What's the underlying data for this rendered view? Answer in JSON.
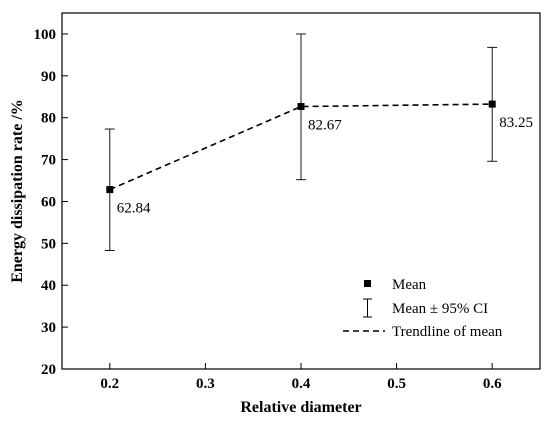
{
  "chart_data": {
    "type": "line",
    "title": "",
    "xlabel": "Relative diameter",
    "ylabel": "Energy dissipation rate /%",
    "xlim": [
      0.15,
      0.65
    ],
    "ylim": [
      20,
      105
    ],
    "xticks": [
      0.2,
      0.3,
      0.4,
      0.5,
      0.6
    ],
    "xtick_labels": [
      "0.2",
      "0.3",
      "0.4",
      "0.5",
      "0.6"
    ],
    "yticks": [
      20,
      30,
      40,
      50,
      60,
      70,
      80,
      90,
      100
    ],
    "ytick_labels": [
      "20",
      "30",
      "40",
      "50",
      "60",
      "70",
      "80",
      "90",
      "100"
    ],
    "grid": false,
    "legend_position": "bottom-right",
    "series": [
      {
        "name": "Mean",
        "x": [
          0.2,
          0.4,
          0.6
        ],
        "y": [
          62.84,
          82.67,
          83.25
        ],
        "ci_low": [
          48.3,
          65.2,
          69.6
        ],
        "ci_high": [
          77.3,
          100.0,
          96.8
        ],
        "data_labels": [
          "62.84",
          "82.67",
          "83.25"
        ]
      }
    ],
    "legend": {
      "mean": "Mean",
      "ci": "Mean ± 95% CI",
      "trend": "Trendline of mean"
    }
  }
}
